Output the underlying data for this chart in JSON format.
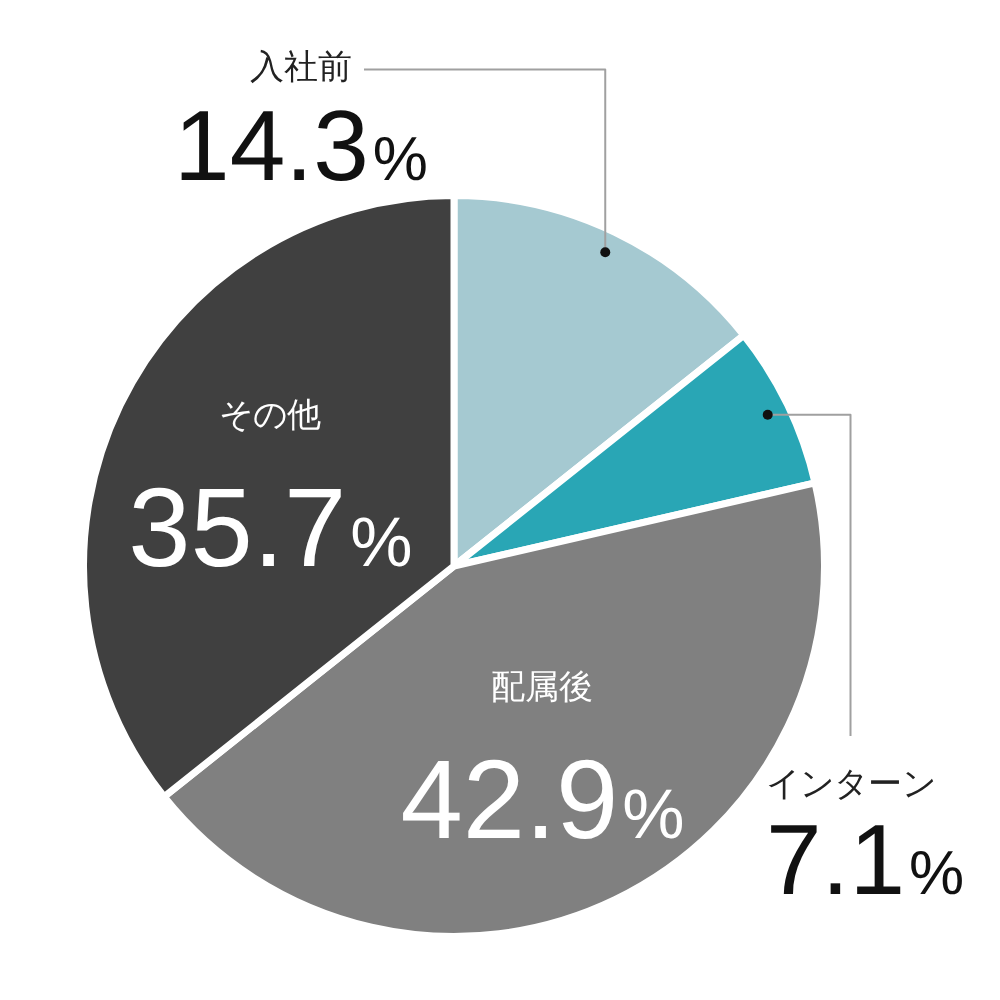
{
  "chart_data": {
    "type": "pie",
    "categories": [
      "入社前",
      "インターン",
      "配属後",
      "その他"
    ],
    "values": [
      14.3,
      7.1,
      42.9,
      35.7
    ],
    "colors": [
      "#a5c9d1",
      "#29a6b5",
      "#808080",
      "#404040"
    ],
    "value_labels": [
      "14.3%",
      "7.1%",
      "42.9%",
      "35.7%"
    ]
  }
}
